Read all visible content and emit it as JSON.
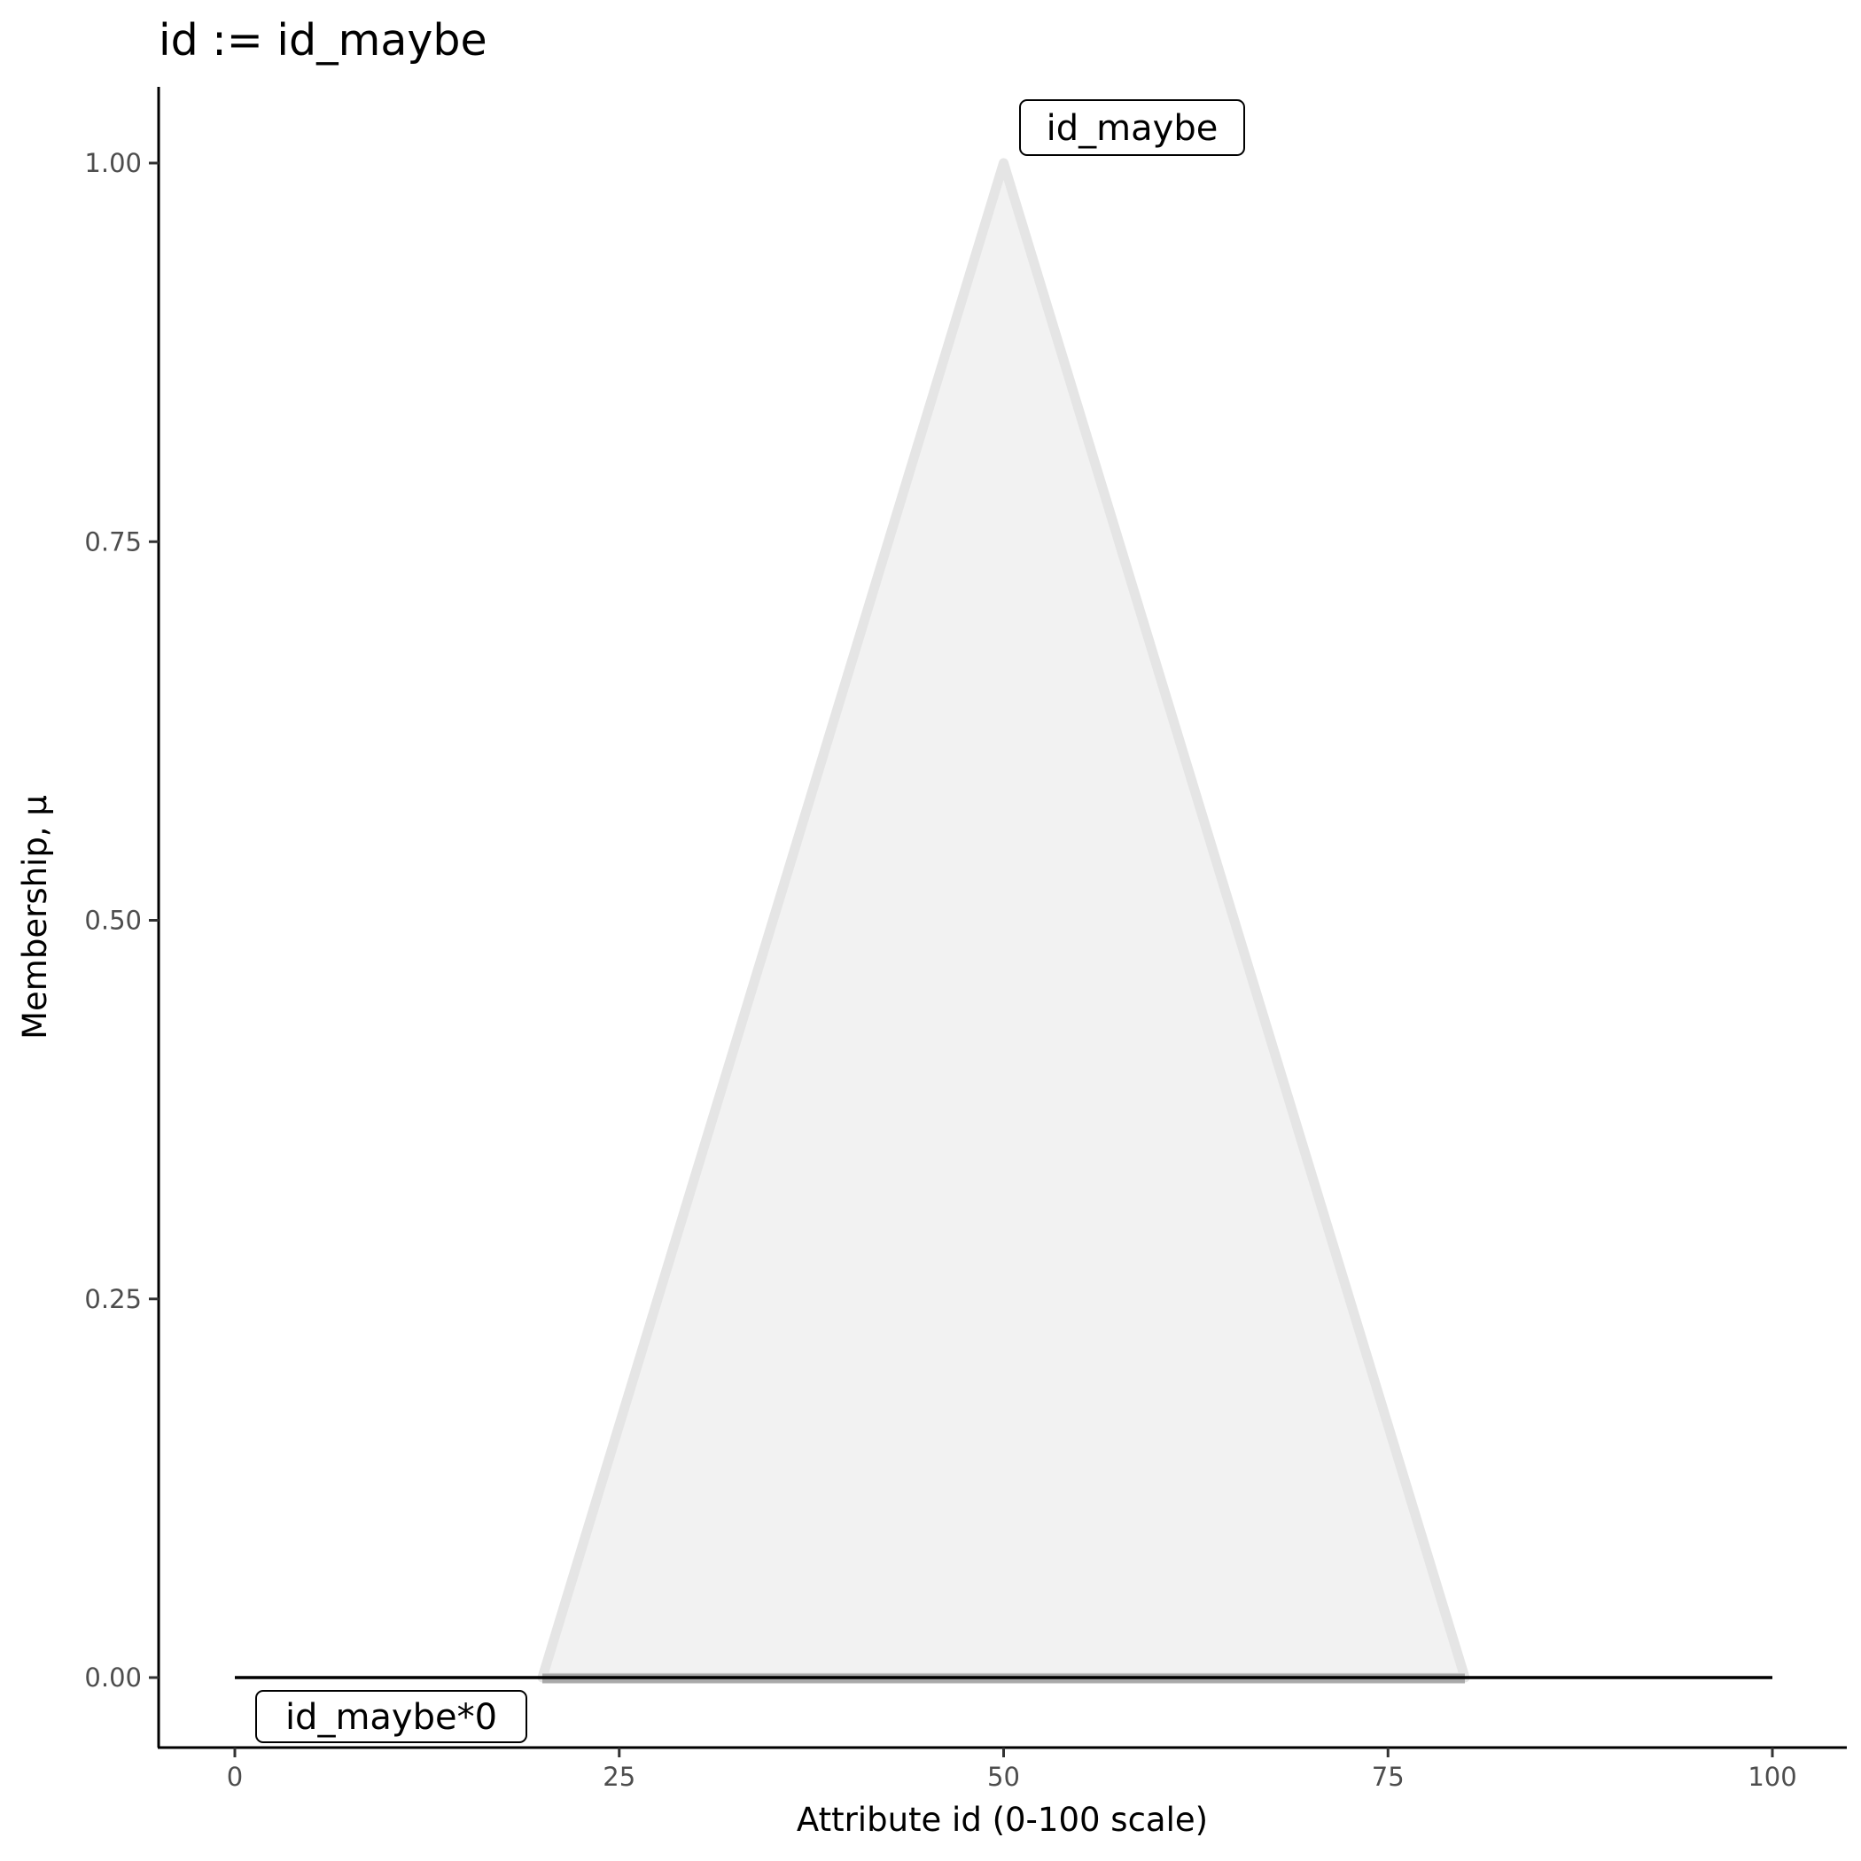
{
  "chart_data": {
    "type": "area",
    "title": "id := id_maybe",
    "xlabel": "Attribute id (0-100 scale)",
    "ylabel": "Membership, μ",
    "xlim": [
      -5,
      105
    ],
    "ylim": [
      -0.05,
      1.05
    ],
    "x_ticks": [
      "0",
      "25",
      "50",
      "75",
      "100"
    ],
    "y_ticks": [
      "0.00",
      "0.25",
      "0.50",
      "0.75",
      "1.00"
    ],
    "grid": false,
    "series": [
      {
        "name": "id_maybe",
        "x": [
          20,
          50,
          80
        ],
        "y": [
          0,
          1,
          0
        ],
        "fill": "#f2f2f2",
        "stroke": "#e5e5e5"
      },
      {
        "name": "id_maybe*0",
        "x": [
          0,
          100
        ],
        "y": [
          0,
          0
        ],
        "stroke": "#000000"
      }
    ],
    "annotations": [
      {
        "text": "id_maybe",
        "x": 50,
        "y": 1.0
      },
      {
        "text": "id_maybe*0",
        "x": 0,
        "y": 0
      }
    ]
  }
}
